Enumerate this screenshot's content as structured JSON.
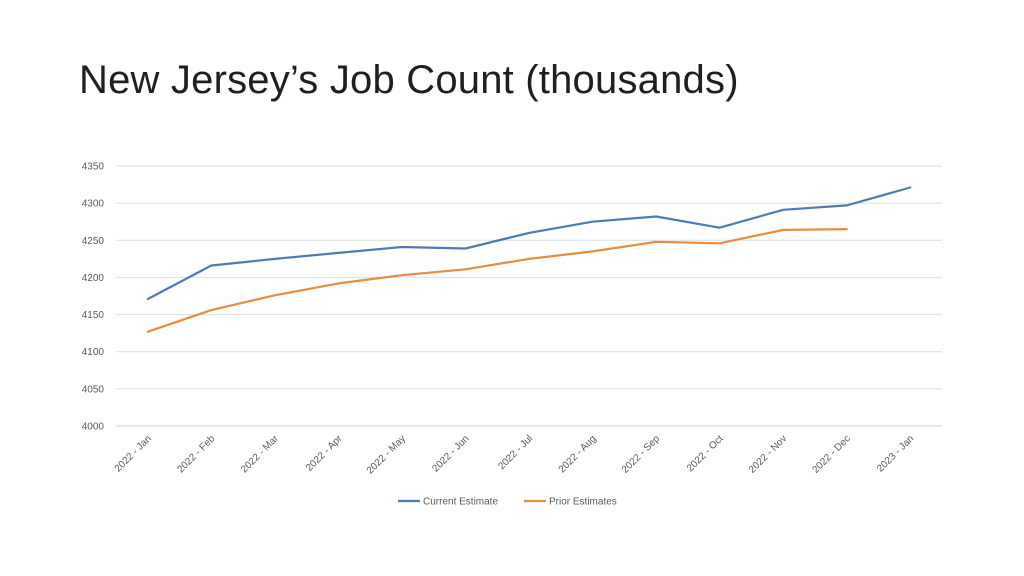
{
  "slide": {
    "title": "New Jersey’s Job Count (thousands)"
  },
  "chart_data": {
    "type": "line",
    "title": "",
    "xlabel": "",
    "ylabel": "",
    "categories": [
      "2022 - Jan",
      "2022 - Feb",
      "2022 - Mar",
      "2022 - Apr",
      "2022 - May",
      "2022 - Jun",
      "2022 - Jul",
      "2022 - Aug",
      "2022 - Sep",
      "2022 - Oct",
      "2022 - Nov",
      "2022 - Dec",
      "2023 - Jan"
    ],
    "ylim": [
      4000,
      4350
    ],
    "yticks": [
      4000,
      4050,
      4100,
      4150,
      4200,
      4250,
      4300,
      4350
    ],
    "grid": true,
    "legend_position": "bottom",
    "series": [
      {
        "name": "Current Estimate",
        "color": "#4e7ab6",
        "values": [
          4171,
          4216,
          4225,
          4233,
          4241,
          4239,
          4260,
          4275,
          4282,
          4267,
          4291,
          4297,
          4321
        ]
      },
      {
        "name": "Prior Estimates",
        "color": "#e88c3d",
        "values": [
          4127,
          4156,
          4176,
          4192,
          4203,
          4211,
          4225,
          4235,
          4248,
          4246,
          4264,
          4265,
          null
        ]
      }
    ]
  }
}
